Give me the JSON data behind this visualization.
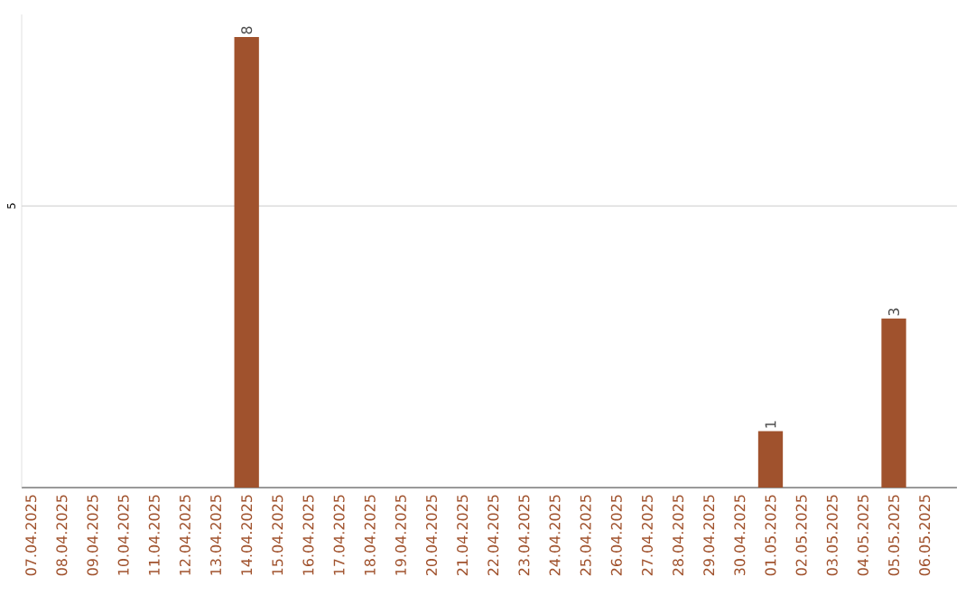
{
  "chart_data": {
    "type": "bar",
    "categories": [
      "07.04.2025",
      "08.04.2025",
      "09.04.2025",
      "10.04.2025",
      "11.04.2025",
      "12.04.2025",
      "13.04.2025",
      "14.04.2025",
      "15.04.2025",
      "16.04.2025",
      "17.04.2025",
      "18.04.2025",
      "19.04.2025",
      "20.04.2025",
      "21.04.2025",
      "22.04.2025",
      "23.04.2025",
      "24.04.2025",
      "25.04.2025",
      "26.04.2025",
      "27.04.2025",
      "28.04.2025",
      "29.04.2025",
      "30.04.2025",
      "01.05.2025",
      "02.05.2025",
      "03.05.2025",
      "04.05.2025",
      "05.05.2025",
      "06.05.2025"
    ],
    "values": [
      0,
      0,
      0,
      0,
      0,
      0,
      0,
      8,
      0,
      0,
      0,
      0,
      0,
      0,
      0,
      0,
      0,
      0,
      0,
      0,
      0,
      0,
      0,
      0,
      1,
      0,
      0,
      0,
      3,
      0
    ],
    "value_labels": [
      null,
      null,
      null,
      null,
      null,
      null,
      null,
      "8",
      null,
      null,
      null,
      null,
      null,
      null,
      null,
      null,
      null,
      null,
      null,
      null,
      null,
      null,
      null,
      null,
      "1",
      null,
      null,
      null,
      "3",
      null
    ],
    "color": "#a0522d",
    "ylim": [
      0,
      8.4
    ],
    "yticks": [
      5
    ],
    "grid": "y"
  }
}
